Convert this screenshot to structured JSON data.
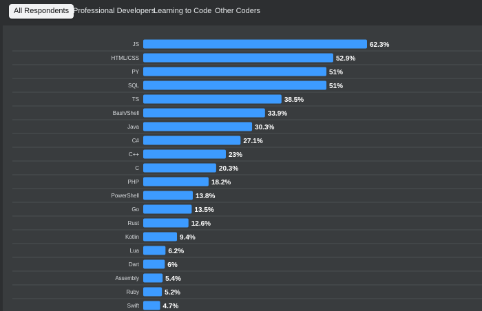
{
  "tabs": [
    {
      "label": "All Respondents",
      "active": true
    },
    {
      "label": "Professional Developers",
      "active": false
    },
    {
      "label": "Learning to Code",
      "active": false
    },
    {
      "label": "Other Coders",
      "active": false
    }
  ],
  "colors": {
    "bar": "#3d9bff",
    "background": "#2d2f31",
    "panel": "#393c3e"
  },
  "chart_data": {
    "type": "bar",
    "orientation": "horizontal",
    "value_suffix": "%",
    "categories": [
      "JS",
      "HTML/CSS",
      "PY",
      "SQL",
      "TS",
      "Bash/Shell",
      "Java",
      "C#",
      "C++",
      "C",
      "PHP",
      "PowerShell",
      "Go",
      "Rust",
      "Kotlin",
      "Lua",
      "Dart",
      "Assembly",
      "Ruby",
      "Swift"
    ],
    "values": [
      62.3,
      52.9,
      51,
      51,
      38.5,
      33.9,
      30.3,
      27.1,
      23,
      20.3,
      18.2,
      13.8,
      13.5,
      12.6,
      9.4,
      6.2,
      6,
      5.4,
      5.2,
      4.7
    ],
    "value_labels": [
      "62.3%",
      "52.9%",
      "51%",
      "51%",
      "38.5%",
      "33.9%",
      "30.3%",
      "27.1%",
      "23%",
      "20.3%",
      "18.2%",
      "13.8%",
      "13.5%",
      "12.6%",
      "9.4%",
      "6.2%",
      "6%",
      "5.4%",
      "5.2%",
      "4.7%"
    ],
    "title": "",
    "xlabel": "",
    "ylabel": "",
    "xlim": [
      0,
      62.3
    ],
    "grid": false,
    "legend": "none"
  }
}
